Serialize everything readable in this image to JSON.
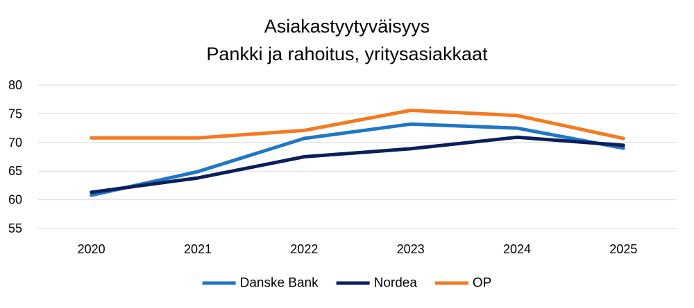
{
  "chart_data": {
    "type": "line",
    "title": "Asiakastyytyväisyys",
    "subtitle": "Pankki ja rahoitus, yritysasiakkaat",
    "xlabel": "",
    "ylabel": "",
    "categories": [
      "2020",
      "2021",
      "2022",
      "2023",
      "2024",
      "2025"
    ],
    "ylim": [
      55,
      80
    ],
    "yticks": [
      55,
      60,
      65,
      70,
      75,
      80
    ],
    "grid": true,
    "legend_position": "bottom",
    "series": [
      {
        "name": "Danske Bank",
        "color": "#1f77c4",
        "values": [
          60.8,
          64.9,
          70.7,
          73.2,
          72.5,
          69.0
        ]
      },
      {
        "name": "Nordea",
        "color": "#0a1f5c",
        "values": [
          61.3,
          63.8,
          67.5,
          68.9,
          70.9,
          69.5
        ]
      },
      {
        "name": "OP",
        "color": "#f47a20",
        "values": [
          70.8,
          70.8,
          72.1,
          75.6,
          74.7,
          70.7
        ]
      }
    ]
  }
}
